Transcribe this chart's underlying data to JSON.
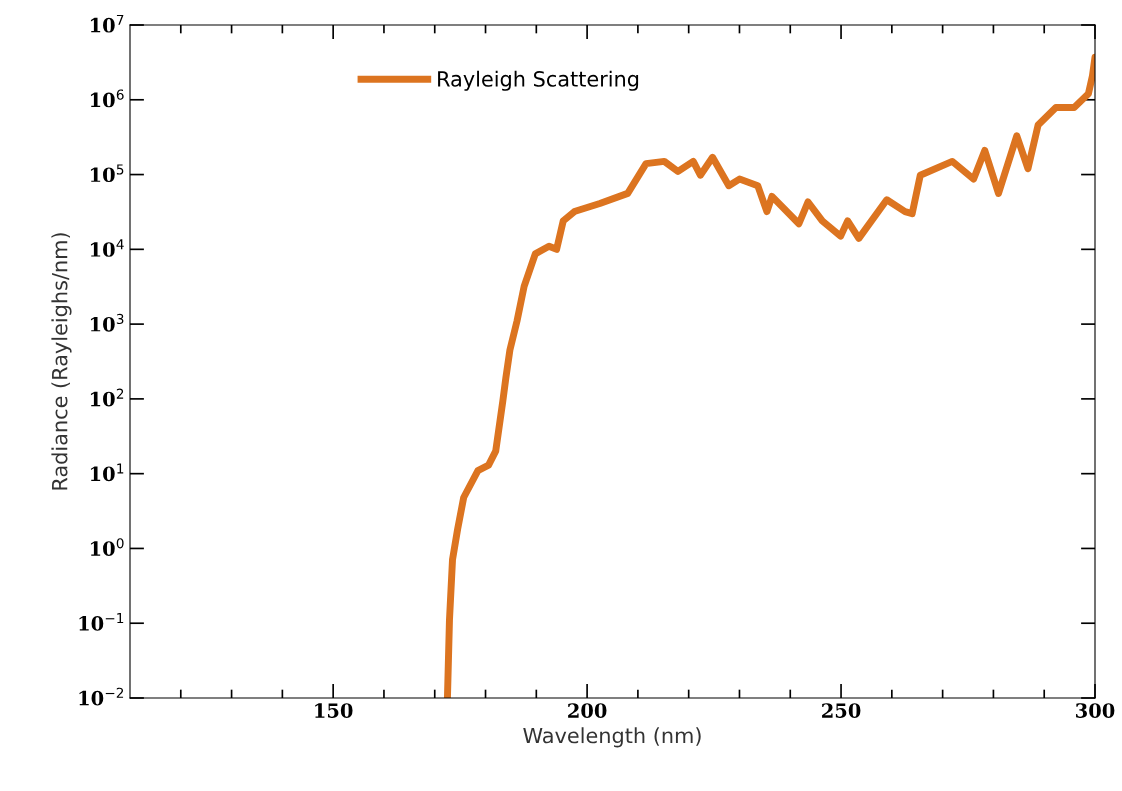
{
  "chart_data": {
    "type": "line",
    "xlabel": "Wavelength (nm)",
    "ylabel": "Radiance (Rayleighs/nm)",
    "log": "y",
    "grid": false,
    "legend": "top left",
    "marker": "none",
    "line_style": "solid",
    "xlim": [
      110,
      300
    ],
    "ylim": [
      0.01,
      10000000
    ],
    "xticks": [
      {
        "value": 120,
        "label": null
      },
      {
        "value": 130,
        "label": null
      },
      {
        "value": 140,
        "label": null
      },
      150,
      {
        "value": 160,
        "label": null
      },
      {
        "value": 170,
        "label": null
      },
      {
        "value": 180,
        "label": null
      },
      {
        "value": 190,
        "label": null
      },
      200,
      {
        "value": 210,
        "label": null
      },
      {
        "value": 220,
        "label": null
      },
      {
        "value": 230,
        "label": null
      },
      {
        "value": 240,
        "label": null
      },
      250,
      {
        "value": 260,
        "label": null
      },
      {
        "value": 270,
        "label": null
      },
      {
        "value": 280,
        "label": null
      },
      {
        "value": 290,
        "label": null
      },
      300
    ],
    "yticks": [
      {
        "value": 0.01,
        "label": "10$^{−2}$"
      },
      {
        "value": 0.1,
        "label": "10$^{−1}$"
      },
      {
        "value": 1,
        "label": "10$^{0}$"
      },
      {
        "value": 10,
        "label": "10$^{1}$"
      },
      {
        "value": 100,
        "label": "10$^{2}$"
      },
      {
        "value": 1000,
        "label": "10$^{3}$"
      },
      {
        "value": 10000,
        "label": "10$^{4}$"
      },
      {
        "value": 100000,
        "label": "10$^{5}$"
      },
      {
        "value": 1000000,
        "label": "10$^{6}$"
      },
      {
        "value": 10000000,
        "label": "10$^{7}$"
      }
    ],
    "series": [
      {
        "name": "Rayleigh Scattering",
        "color": "#dc7420",
        "x": [
          172.5,
          172.9,
          173.5,
          174.5,
          175.7,
          178.5,
          180.6,
          182.0,
          183.4,
          184.0,
          184.8,
          186.2,
          187.6,
          189.8,
          192.5,
          194.0,
          195.3,
          197.5,
          202.5,
          208,
          211.6,
          215.2,
          217.9,
          220.9,
          222.3,
          224.7,
          227.9,
          230,
          233.6,
          235.4,
          236.4,
          241.7,
          243.5,
          246.3,
          249.9,
          251.3,
          253.5,
          259,
          262.6,
          264,
          265.6,
          271.9,
          276.1,
          278.3,
          281,
          284.6,
          286.8,
          288.8,
          292.3,
          295.9,
          298.7,
          299.5,
          300
        ],
        "values": [
          0.01,
          0.11,
          0.71,
          1.8,
          4.8,
          11,
          13,
          20,
          93,
          190,
          450,
          1100,
          3200,
          8700,
          11000,
          10000,
          24000,
          32000,
          41000,
          56000,
          140000,
          150000,
          110000,
          150000,
          98000,
          170000,
          71000,
          87000,
          71000,
          32000,
          51000,
          22000,
          43000,
          24000,
          15000,
          24000,
          14000,
          46000,
          32000,
          30000,
          98000,
          150000,
          87000,
          210000,
          56000,
          330000,
          120000,
          460000,
          790000,
          790000,
          1200000,
          2100000,
          3700000
        ]
      }
    ]
  }
}
